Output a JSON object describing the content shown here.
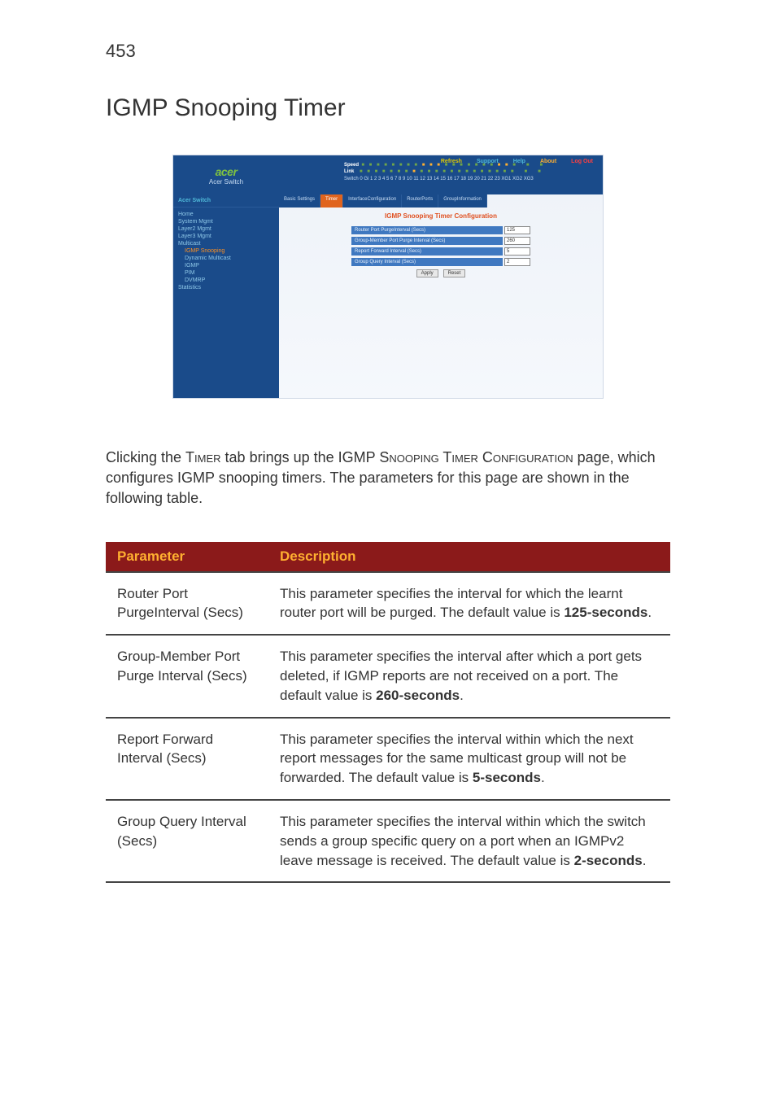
{
  "page_number": "453",
  "section_title": "IGMP Snooping Timer",
  "screenshot": {
    "top_links": {
      "refresh": "Refresh",
      "support": "Support",
      "help": "Help",
      "about": "About",
      "logout": "Log Out"
    },
    "logo_brand": "acer",
    "logo_sub": "Acer Switch",
    "speed_label": "Speed",
    "link_label": "Link",
    "stack_label": "Switch 0 Gi 1 2 3 4 5 6 7 8 9 10 11 12 13 14 15 16 17 18 19 20 21 22 23 XG1 XG2 XG3",
    "nav_title": "Acer Switch",
    "nav_items": [
      {
        "label": "Home",
        "depth": 0,
        "sel": false
      },
      {
        "label": "System Mgmt",
        "depth": 0,
        "sel": false
      },
      {
        "label": "Layer2 Mgmt",
        "depth": 0,
        "sel": false
      },
      {
        "label": "Layer3 Mgmt",
        "depth": 0,
        "sel": false
      },
      {
        "label": "Multicast",
        "depth": 0,
        "sel": false
      },
      {
        "label": "IGMP Snooping",
        "depth": 1,
        "sel": true
      },
      {
        "label": "Dynamic Multicast",
        "depth": 1,
        "sel": false
      },
      {
        "label": "IGMP",
        "depth": 1,
        "sel": false
      },
      {
        "label": "PIM",
        "depth": 1,
        "sel": false
      },
      {
        "label": "DVMRP",
        "depth": 1,
        "sel": false
      },
      {
        "label": "Statistics",
        "depth": 0,
        "sel": false
      }
    ],
    "tabs": [
      {
        "label": "Basic Settings",
        "active": false
      },
      {
        "label": "Timer",
        "active": true
      },
      {
        "label": "InterfaceConfiguration",
        "active": false
      },
      {
        "label": "RouterPorts",
        "active": false
      },
      {
        "label": "GroupInformation",
        "active": false
      }
    ],
    "panel_title": "IGMP Snooping Timer Configuration",
    "form": [
      {
        "label": "Router Port PurgeInterval (Secs)",
        "value": "125"
      },
      {
        "label": "Group-Member Port Purge Interval (Secs)",
        "value": "260"
      },
      {
        "label": "Report Forward Interval (Secs)",
        "value": "5"
      },
      {
        "label": "Group Query Interval (Secs)",
        "value": "2"
      }
    ],
    "btn_apply": "Apply",
    "btn_reset": "Reset",
    "colors": {
      "header_bg": "#1a4b8a",
      "nav_bg": "#1a4b8a",
      "active_tab": "#e0641e",
      "panel_title": "#e05020",
      "field_bg": "#3f78c0",
      "logo_green": "#7fc241"
    }
  },
  "body_text_parts": {
    "p1a": "Clicking the ",
    "p1b": "Timer",
    "p1c": " tab brings up the IGMP ",
    "p1d": "Snooping Timer Configuration",
    "p1e": " page, which configures IGMP snooping timers. The parameters for this page are shown in the following table."
  },
  "table": {
    "header_bg": "#8b1a1a",
    "header_fg": "#ffb030",
    "col1": "Parameter",
    "col2": "Description",
    "rows": [
      {
        "param": "Router Port PurgeInterval (Secs)",
        "desc_pre": "This parameter specifies the interval for which the learnt router port will be purged. The default value is ",
        "desc_bold": "125-seconds",
        "desc_post": "."
      },
      {
        "param": "Group-Member Port Purge Interval (Secs)",
        "desc_pre": "This parameter specifies the interval after which a port gets deleted, if IGMP reports are not received on a port. The default value is ",
        "desc_bold": "260-seconds",
        "desc_post": "."
      },
      {
        "param": "Report Forward Interval (Secs)",
        "desc_pre": "This parameter specifies the interval within which the next report messages for the same multicast group will not be forwarded. The default value is ",
        "desc_bold": "5-seconds",
        "desc_post": "."
      },
      {
        "param": "Group Query Interval (Secs)",
        "desc_pre": "This parameter specifies the interval within which the switch sends a group specific query on a port when an IGMPv2 leave message is received. The default value is ",
        "desc_bold": "2-seconds",
        "desc_post": "."
      }
    ]
  }
}
